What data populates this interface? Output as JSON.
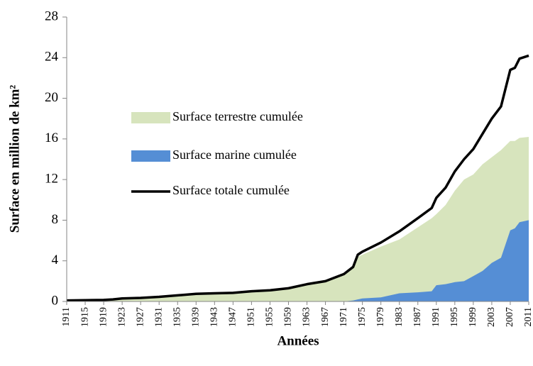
{
  "chart_data": {
    "type": "area-line",
    "xlabel": "Années",
    "ylabel": "Surface en million de km²",
    "x": [
      1911,
      1915,
      1919,
      1921,
      1923,
      1927,
      1931,
      1935,
      1939,
      1943,
      1947,
      1951,
      1955,
      1959,
      1963,
      1967,
      1971,
      1973,
      1974,
      1975,
      1979,
      1983,
      1987,
      1990,
      1991,
      1993,
      1995,
      1997,
      1999,
      2001,
      2003,
      2005,
      2007,
      2008,
      2009,
      2011
    ],
    "series": [
      {
        "name": "Surface terrestre cumulée",
        "color": "#d7e4bd",
        "kind": "area",
        "values": [
          0.1,
          0.12,
          0.15,
          0.2,
          0.3,
          0.35,
          0.45,
          0.6,
          0.75,
          0.8,
          0.85,
          1.0,
          1.1,
          1.3,
          1.7,
          2.0,
          2.7,
          3.3,
          4.4,
          4.6,
          5.4,
          6.1,
          7.3,
          8.2,
          8.6,
          9.5,
          10.9,
          12.0,
          12.5,
          13.5,
          14.2,
          14.9,
          15.8,
          15.8,
          16.1,
          16.2
        ]
      },
      {
        "name": "Surface marine cumulée",
        "color": "#558ed5",
        "kind": "area",
        "values": [
          0,
          0,
          0,
          0,
          0,
          0,
          0,
          0,
          0,
          0,
          0,
          0,
          0,
          0,
          0,
          0,
          0,
          0.1,
          0.2,
          0.3,
          0.4,
          0.8,
          0.9,
          1.0,
          1.6,
          1.7,
          1.9,
          2.0,
          2.5,
          3.0,
          3.8,
          4.3,
          7.0,
          7.2,
          7.8,
          8.0
        ]
      },
      {
        "name": "Surface totale cumulée",
        "color": "#000000",
        "kind": "line",
        "values": [
          0.1,
          0.12,
          0.15,
          0.2,
          0.3,
          0.35,
          0.45,
          0.6,
          0.75,
          0.8,
          0.85,
          1.0,
          1.1,
          1.3,
          1.7,
          2.0,
          2.7,
          3.4,
          4.6,
          4.9,
          5.8,
          6.9,
          8.2,
          9.2,
          10.2,
          11.2,
          12.8,
          14.0,
          15.0,
          16.5,
          18.0,
          19.2,
          22.8,
          23.0,
          23.9,
          24.2
        ]
      }
    ],
    "xlim": [
      1911,
      2011
    ],
    "xticks": [
      1911,
      1915,
      1919,
      1923,
      1927,
      1931,
      1935,
      1939,
      1943,
      1947,
      1951,
      1955,
      1959,
      1963,
      1967,
      1971,
      1975,
      1979,
      1983,
      1987,
      1991,
      1995,
      1999,
      2003,
      2007,
      2011
    ],
    "ylim": [
      0,
      28
    ],
    "yticks": [
      0,
      4,
      8,
      12,
      16,
      20,
      24,
      28
    ],
    "grid": false
  }
}
